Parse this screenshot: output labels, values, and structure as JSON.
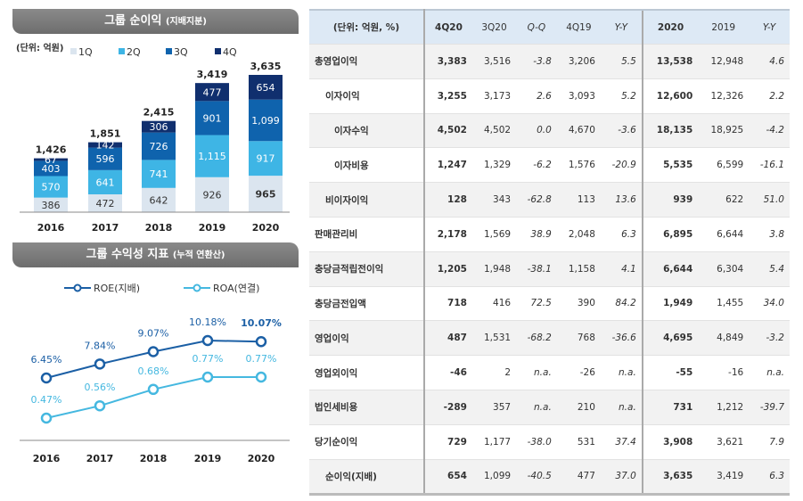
{
  "chart_data": [
    {
      "type": "bar",
      "stacked": true,
      "title": "그룹 순이익",
      "subtitle": "(지배지분)",
      "unit_label": "(단위: 억원)",
      "categories": [
        "2016",
        "2017",
        "2018",
        "2019",
        "2020"
      ],
      "series": [
        {
          "name": "1Q",
          "color": "#dbe5ef",
          "values": [
            386,
            472,
            642,
            926,
            965
          ]
        },
        {
          "name": "2Q",
          "color": "#3eb5e5",
          "values": [
            570,
            641,
            741,
            1115,
            917
          ]
        },
        {
          "name": "3Q",
          "color": "#0f63ad",
          "values": [
            403,
            596,
            726,
            901,
            1099
          ]
        },
        {
          "name": "4Q",
          "color": "#102f6e",
          "values": [
            67,
            142,
            306,
            477,
            654
          ]
        }
      ],
      "totals": [
        1426,
        1851,
        2415,
        3419,
        3635
      ],
      "labels": {
        "1Q": [
          "386",
          "472",
          "642",
          "926",
          "965"
        ],
        "2Q": [
          "570",
          "641",
          "741",
          "1,115",
          "917"
        ],
        "3Q": [
          "403",
          "596",
          "726",
          "901",
          "1,099"
        ],
        "4Q": [
          "67",
          "142",
          "306",
          "477",
          "654"
        ],
        "totals": [
          "1,426",
          "1,851",
          "2,415",
          "3,419",
          "3,635"
        ]
      }
    },
    {
      "type": "line",
      "title": "그룹 수익성 지표",
      "subtitle": "(누적 연환산)",
      "categories": [
        "2016",
        "2017",
        "2018",
        "2019",
        "2020"
      ],
      "series": [
        {
          "name": "ROE(지배)",
          "color": "#1b5fa5",
          "values": [
            6.45,
            7.84,
            9.07,
            10.18,
            10.07
          ],
          "labels": [
            "6.45%",
            "7.84%",
            "9.07%",
            "10.18%",
            "10.07%"
          ]
        },
        {
          "name": "ROA(연결)",
          "color": "#45b8e0",
          "values": [
            0.47,
            0.56,
            0.68,
            0.77,
            0.77
          ],
          "labels": [
            "0.47%",
            "0.56%",
            "0.68%",
            "0.77%",
            "0.77%"
          ]
        }
      ]
    }
  ],
  "table": {
    "header": [
      "(단위: 억원, %)",
      "4Q20",
      "3Q20",
      "Q-Q",
      "4Q19",
      "Y-Y",
      "2020",
      "2019",
      "Y-Y"
    ],
    "rows": [
      [
        "총영업이익",
        "3,383",
        "3,516",
        "-3.8",
        "3,206",
        "5.5",
        "13,538",
        "12,948",
        "4.6"
      ],
      [
        "이자이익",
        "3,255",
        "3,173",
        "2.6",
        "3,093",
        "5.2",
        "12,600",
        "12,326",
        "2.2"
      ],
      [
        "이자수익",
        "4,502",
        "4,502",
        "0.0",
        "4,670",
        "-3.6",
        "18,135",
        "18,925",
        "-4.2"
      ],
      [
        "이자비용",
        "1,247",
        "1,329",
        "-6.2",
        "1,576",
        "-20.9",
        "5,535",
        "6,599",
        "-16.1"
      ],
      [
        "비이자이익",
        "128",
        "343",
        "-62.8",
        "113",
        "13.6",
        "939",
        "622",
        "51.0"
      ],
      [
        "판매관리비",
        "2,178",
        "1,569",
        "38.9",
        "2,048",
        "6.3",
        "6,895",
        "6,644",
        "3.8"
      ],
      [
        "충당금적립전이익",
        "1,205",
        "1,948",
        "-38.1",
        "1,158",
        "4.1",
        "6,644",
        "6,304",
        "5.4"
      ],
      [
        "충당금전입액",
        "718",
        "416",
        "72.5",
        "390",
        "84.2",
        "1,949",
        "1,455",
        "34.0"
      ],
      [
        "영업이익",
        "487",
        "1,531",
        "-68.2",
        "768",
        "-36.6",
        "4,695",
        "4,849",
        "-3.2"
      ],
      [
        "영업외이익",
        "-46",
        "2",
        "n.a.",
        "-26",
        "n.a.",
        "-55",
        "-16",
        "n.a."
      ],
      [
        "법인세비용",
        "-289",
        "357",
        "n.a.",
        "210",
        "n.a.",
        "731",
        "1,212",
        "-39.7"
      ],
      [
        "당기순이익",
        "729",
        "1,177",
        "-38.0",
        "531",
        "37.4",
        "3,908",
        "3,621",
        "7.9"
      ],
      [
        "순이익(지배)",
        "654",
        "1,099",
        "-40.5",
        "477",
        "37.0",
        "3,635",
        "3,419",
        "6.3"
      ]
    ]
  }
}
